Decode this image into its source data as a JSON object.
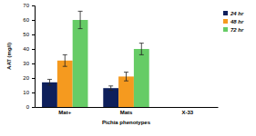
{
  "chart_data": {
    "type": "bar",
    "categories": [
      "Mat+",
      "Mats",
      "X-33"
    ],
    "x_label": "Pichia phenotypes",
    "y_label": "AAT (mg/l)",
    "series": [
      {
        "name": "24 hr",
        "color": "#0e1f5b",
        "values": [
          17,
          13,
          0
        ],
        "errors": [
          2,
          1.5,
          0
        ]
      },
      {
        "name": "48 hr",
        "color": "#f59a1f",
        "values": [
          32,
          21,
          0
        ],
        "errors": [
          4,
          3,
          0
        ]
      },
      {
        "name": "72 hr",
        "color": "#66cc66",
        "values": [
          60,
          40,
          0
        ],
        "errors": [
          6,
          4,
          0
        ]
      }
    ],
    "ylim": [
      0,
      70
    ],
    "yticks": [
      0,
      10,
      20,
      30,
      40,
      50,
      60,
      70
    ],
    "grid": false,
    "legend": "top-right"
  }
}
